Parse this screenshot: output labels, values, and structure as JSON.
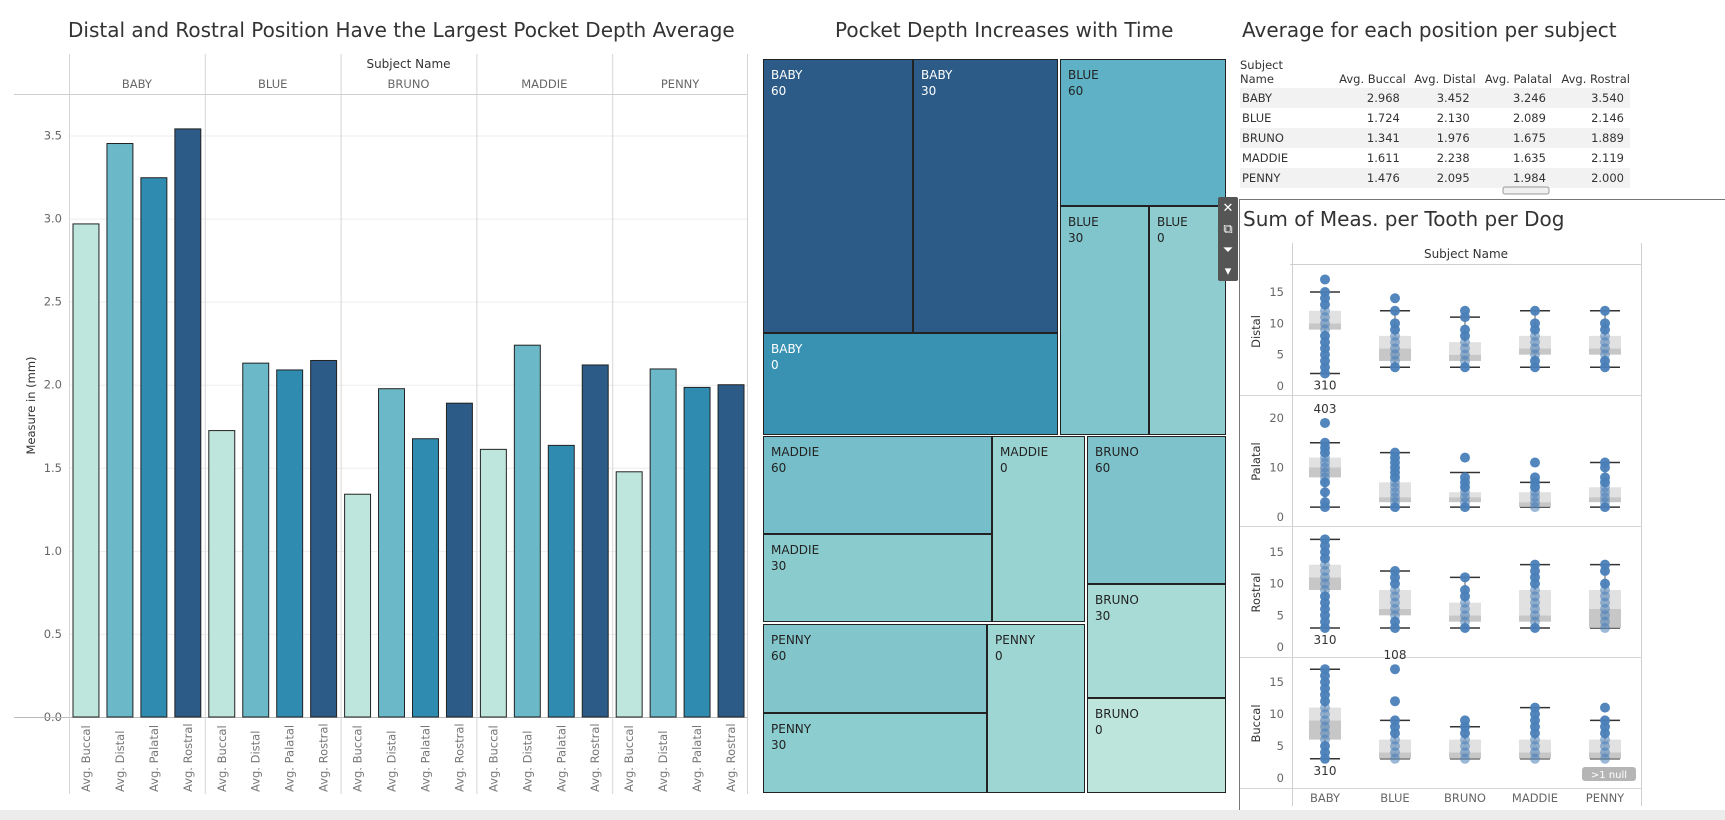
{
  "titles": {
    "bar": "Distal and Rostral Position Have the Largest Pocket Depth Average",
    "treemap": "Pocket Depth Increases with Time",
    "table": "Average for each position per subject",
    "box": "Sum of Meas. per Tooth per Dog"
  },
  "colors": {
    "buccal": "#bfe6dc",
    "distal": "#6bb8c9",
    "palatal": "#2f8cb0",
    "rostral": "#2c5b87",
    "dot": "#4a7fb8",
    "null_badge": "#b5b5b5"
  },
  "table": {
    "headers": [
      "Subject Name",
      "Avg. Buccal",
      "Avg. Distal",
      "Avg. Palatal",
      "Avg. Rostral"
    ],
    "rows": [
      [
        "BABY",
        "2.968",
        "3.452",
        "3.246",
        "3.540"
      ],
      [
        "BLUE",
        "1.724",
        "2.130",
        "2.089",
        "2.146"
      ],
      [
        "BRUNO",
        "1.341",
        "1.976",
        "1.675",
        "1.889"
      ],
      [
        "MADDIE",
        "1.611",
        "2.238",
        "1.635",
        "2.119"
      ],
      [
        "PENNY",
        "1.476",
        "2.095",
        "1.984",
        "2.000"
      ]
    ]
  },
  "toolbar_icons": [
    "close-icon",
    "popout-icon",
    "filter-icon",
    "more-icon"
  ],
  "chart_data": [
    {
      "type": "bar",
      "title": "Distal and Rostral Position Have the Largest Pocket Depth Average",
      "header": "Subject Name",
      "subjects": [
        "BABY",
        "BLUE",
        "BRUNO",
        "MADDIE",
        "PENNY"
      ],
      "categories": [
        "Avg. Buccal",
        "Avg. Distal",
        "Avg. Palatal",
        "Avg. Rostral"
      ],
      "series": [
        {
          "subject": "BABY",
          "values": [
            2.968,
            3.452,
            3.246,
            3.54
          ]
        },
        {
          "subject": "BLUE",
          "values": [
            1.724,
            2.13,
            2.089,
            2.146
          ]
        },
        {
          "subject": "BRUNO",
          "values": [
            1.341,
            1.976,
            1.675,
            1.889
          ]
        },
        {
          "subject": "MADDIE",
          "values": [
            1.611,
            2.238,
            1.635,
            2.119
          ]
        },
        {
          "subject": "PENNY",
          "values": [
            1.476,
            2.095,
            1.984,
            2.0
          ]
        }
      ],
      "ylabel": "Measure in (mm)",
      "yticks": [
        "0.0",
        "0.5",
        "1.0",
        "1.5",
        "2.0",
        "2.5",
        "3.0",
        "3.5"
      ],
      "ylim": [
        0,
        3.75
      ],
      "grid": true
    },
    {
      "type": "treemap",
      "title": "Pocket Depth Increases with Time",
      "cells": [
        {
          "subject": "BABY",
          "time": "60",
          "color": "#2c5b87"
        },
        {
          "subject": "BABY",
          "time": "30",
          "color": "#2c5b87"
        },
        {
          "subject": "BABY",
          "time": "0",
          "color": "#3a92b3"
        },
        {
          "subject": "BLUE",
          "time": "60",
          "color": "#5fb2c6"
        },
        {
          "subject": "BLUE",
          "time": "30",
          "color": "#80c4cc"
        },
        {
          "subject": "BLUE",
          "time": "0",
          "color": "#8fcccf"
        },
        {
          "subject": "MADDIE",
          "time": "60",
          "color": "#76bfca"
        },
        {
          "subject": "MADDIE",
          "time": "0",
          "color": "#99d3d1"
        },
        {
          "subject": "MADDIE",
          "time": "30",
          "color": "#8accce"
        },
        {
          "subject": "BRUNO",
          "time": "60",
          "color": "#7ec3cb"
        },
        {
          "subject": "BRUNO",
          "time": "30",
          "color": "#a8dbd5"
        },
        {
          "subject": "BRUNO",
          "time": "0",
          "color": "#bde5dc"
        },
        {
          "subject": "PENNY",
          "time": "60",
          "color": "#82c6cc"
        },
        {
          "subject": "PENNY",
          "time": "0",
          "color": "#9ed6d3"
        },
        {
          "subject": "PENNY",
          "time": "30",
          "color": "#8ccdcf"
        }
      ]
    },
    {
      "type": "scatter",
      "subtype": "box-and-whisker",
      "title": "Sum of Meas. per Tooth per Dog",
      "header": "Subject Name",
      "categories": [
        "BABY",
        "BLUE",
        "BRUNO",
        "MADDIE",
        "PENNY"
      ],
      "rows": [
        {
          "name": "Distal",
          "ylim": [
            0,
            18
          ],
          "yticks": [
            "0",
            "5",
            "10",
            "15"
          ],
          "tick_values": [
            0,
            5,
            10,
            15
          ],
          "boxes": [
            [
              2,
              9,
              10,
              12,
              15
            ],
            [
              3,
              4,
              6,
              8,
              12
            ],
            [
              3,
              4,
              5,
              7,
              11
            ],
            [
              3,
              5,
              6,
              8,
              12
            ],
            [
              3,
              5,
              6,
              8,
              12
            ]
          ],
          "points": [
            [
              2,
              3,
              4,
              5,
              6,
              7,
              8,
              9,
              10,
              11,
              12,
              13,
              14,
              15,
              17
            ],
            [
              3,
              4,
              5,
              6,
              7,
              8,
              9,
              10,
              12,
              14
            ],
            [
              3,
              4,
              5,
              6,
              7,
              8,
              9,
              11,
              12
            ],
            [
              3,
              4,
              5,
              6,
              7,
              8,
              9,
              10,
              12
            ],
            [
              3,
              4,
              5,
              6,
              7,
              8,
              9,
              10,
              12
            ]
          ],
          "labels": [
            {
              "cat": 0,
              "text": "310",
              "pos": "below"
            }
          ]
        },
        {
          "name": "Palatal",
          "ylim": [
            0,
            22
          ],
          "yticks": [
            "0",
            "10",
            "20"
          ],
          "tick_values": [
            0,
            10,
            20
          ],
          "boxes": [
            [
              2,
              8,
              10,
              12,
              15
            ],
            [
              2,
              3,
              4,
              7,
              13
            ],
            [
              2,
              3,
              4,
              5,
              9
            ],
            [
              2,
              2,
              3,
              5,
              7
            ],
            [
              2,
              3,
              4,
              6,
              11
            ]
          ],
          "points": [
            [
              2,
              3,
              5,
              7,
              8,
              9,
              10,
              11,
              12,
              13,
              14,
              15,
              19
            ],
            [
              2,
              3,
              4,
              5,
              6,
              7,
              8,
              9,
              10,
              11,
              12,
              13
            ],
            [
              2,
              3,
              4,
              5,
              6,
              7,
              8,
              12
            ],
            [
              2,
              3,
              4,
              5,
              6,
              7,
              8,
              11
            ],
            [
              2,
              3,
              4,
              5,
              6,
              7,
              8,
              10,
              11
            ]
          ],
          "labels": [
            {
              "cat": 0,
              "text": "403",
              "pos": "above"
            }
          ]
        },
        {
          "name": "Rostral",
          "ylim": [
            0,
            18
          ],
          "yticks": [
            "0",
            "5",
            "10",
            "15"
          ],
          "tick_values": [
            0,
            5,
            10,
            15
          ],
          "boxes": [
            [
              3,
              9,
              11,
              13,
              17
            ],
            [
              3,
              5,
              6,
              9,
              12
            ],
            [
              3,
              4,
              5,
              7,
              11
            ],
            [
              3,
              4,
              5,
              9,
              13
            ],
            [
              3,
              3,
              6,
              9,
              13
            ]
          ],
          "points": [
            [
              3,
              4,
              5,
              6,
              7,
              8,
              9,
              10,
              11,
              12,
              13,
              14,
              15,
              16,
              17
            ],
            [
              3,
              4,
              5,
              6,
              7,
              8,
              9,
              10,
              11,
              12
            ],
            [
              3,
              4,
              5,
              6,
              7,
              8,
              9,
              11
            ],
            [
              3,
              4,
              5,
              6,
              7,
              8,
              9,
              10,
              11,
              12,
              13
            ],
            [
              3,
              4,
              5,
              6,
              7,
              8,
              9,
              10,
              12,
              13
            ]
          ],
          "labels": [
            {
              "cat": 0,
              "text": "310",
              "pos": "below"
            }
          ]
        },
        {
          "name": "Buccal",
          "ylim": [
            0,
            18
          ],
          "yticks": [
            "0",
            "5",
            "10",
            "15"
          ],
          "tick_values": [
            0,
            5,
            10,
            15
          ],
          "boxes": [
            [
              3,
              6,
              9,
              11,
              17
            ],
            [
              3,
              3,
              4,
              6,
              9
            ],
            [
              3,
              3,
              4,
              6,
              8
            ],
            [
              3,
              3,
              4,
              6,
              11
            ],
            [
              3,
              3,
              4,
              6,
              9
            ]
          ],
          "points": [
            [
              3,
              4,
              5,
              6,
              7,
              8,
              9,
              10,
              11,
              12,
              13,
              14,
              15,
              16,
              17
            ],
            [
              3,
              4,
              5,
              6,
              7,
              8,
              9,
              12,
              17
            ],
            [
              3,
              4,
              5,
              6,
              7,
              8,
              9
            ],
            [
              3,
              4,
              5,
              6,
              7,
              8,
              9,
              10,
              11
            ],
            [
              3,
              4,
              5,
              6,
              7,
              8,
              9,
              11
            ]
          ],
          "labels": [
            {
              "cat": 0,
              "text": "310",
              "pos": "below"
            },
            {
              "cat": 1,
              "text": "108",
              "pos": "above"
            }
          ]
        }
      ],
      "null_indicator": ">1 null"
    }
  ]
}
